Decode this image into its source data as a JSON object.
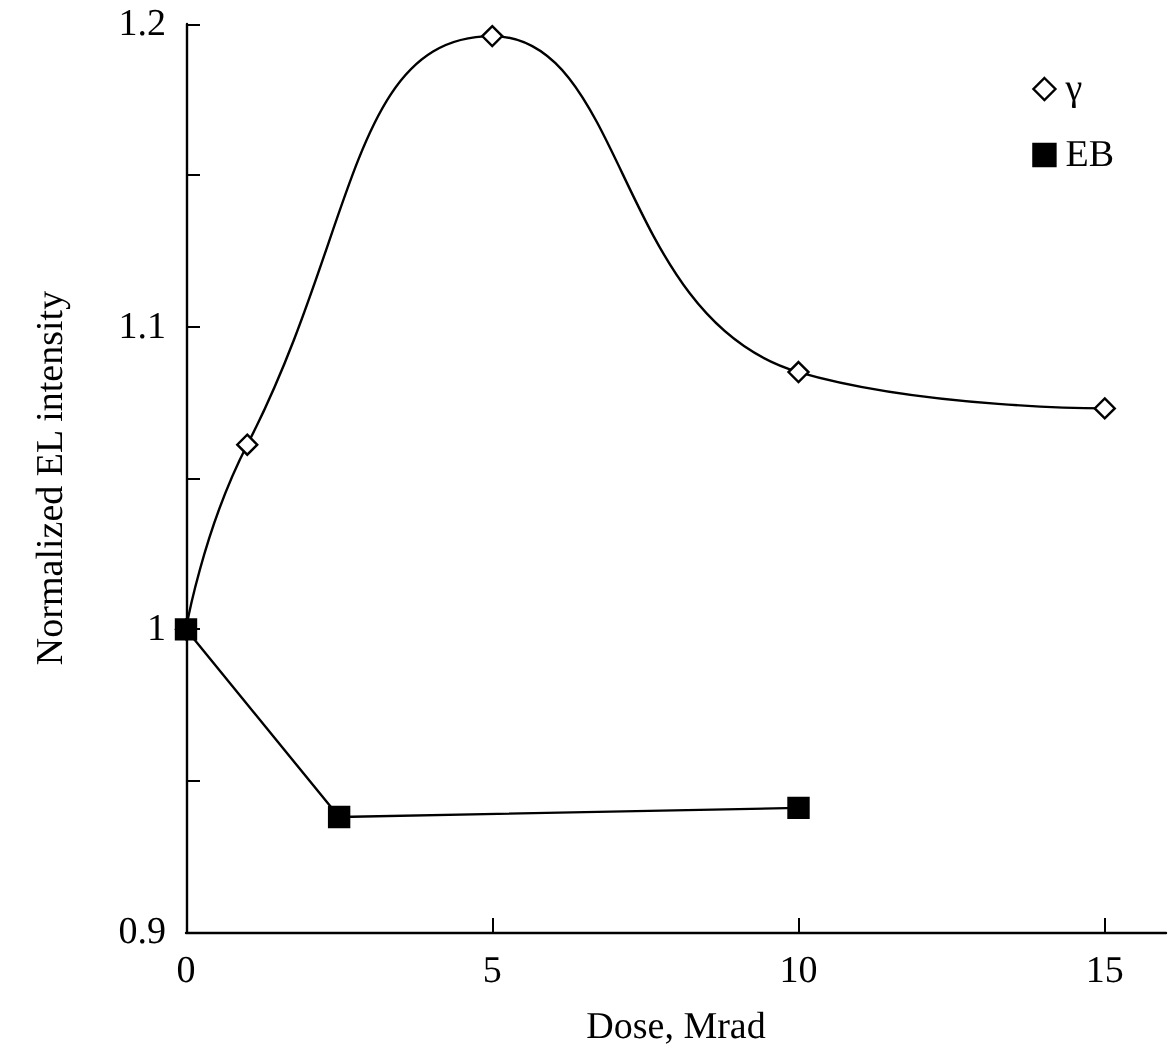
{
  "chart_data": {
    "type": "line",
    "xlabel": "Dose, Mrad",
    "ylabel": "Normalized EL intensity",
    "xlim": [
      0,
      16
    ],
    "xticks": [
      0,
      5,
      10,
      15
    ],
    "ylim": [
      0.9,
      1.2
    ],
    "yticks": [
      0.9,
      {
        "value": 0.95,
        "label": null
      },
      1,
      {
        "value": 1.05,
        "label": null
      },
      1.1,
      {
        "value": 1.15,
        "label": null
      },
      1.2
    ],
    "grid": false,
    "legend": "top right",
    "line_style": "solid",
    "series": [
      {
        "name": "γ",
        "color": "#000000",
        "marker": "diamond",
        "x": [
          0,
          1,
          5,
          10,
          15
        ],
        "values": [
          1,
          1.061,
          1.196,
          1.085,
          1.073
        ]
      },
      {
        "name": "EB",
        "color": "#000000",
        "marker": "square",
        "x": [
          0,
          2.5,
          10
        ],
        "values": [
          1,
          0.938,
          0.941
        ]
      }
    ]
  }
}
